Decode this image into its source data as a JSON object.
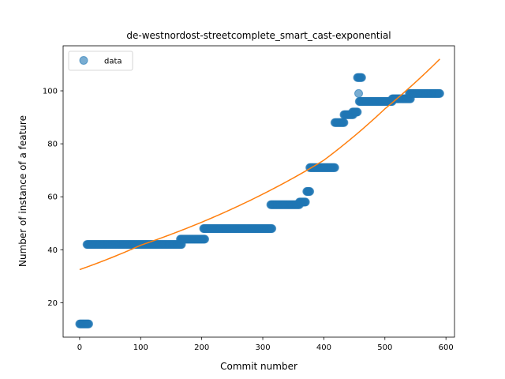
{
  "chart_data": {
    "type": "scatter",
    "title": "de-westnordost-streetcomplete_smart_cast-exponential",
    "xlabel": "Commit number",
    "ylabel": "Number of instance of a feature",
    "xlim": [
      -27,
      614
    ],
    "ylim": [
      7,
      117
    ],
    "xticks": [
      0,
      100,
      200,
      300,
      400,
      500,
      600
    ],
    "yticks": [
      20,
      40,
      60,
      80,
      100
    ],
    "grid": false,
    "legend": {
      "placement": "top-left",
      "entries": [
        "data"
      ]
    },
    "colors": {
      "data": "#1f77b4",
      "fit": "#ff7f0e"
    },
    "data_segments": [
      {
        "x_start": 0,
        "x_end": 15,
        "y": 12
      },
      {
        "x_start": 12,
        "x_end": 167,
        "y": 42
      },
      {
        "x_start": 165,
        "x_end": 205,
        "y": 44
      },
      {
        "x_start": 203,
        "x_end": 315,
        "y": 48
      },
      {
        "x_start": 313,
        "x_end": 360,
        "y": 57
      },
      {
        "x_start": 360,
        "x_end": 370,
        "y": 58
      },
      {
        "x_start": 372,
        "x_end": 377,
        "y": 62
      },
      {
        "x_start": 377,
        "x_end": 418,
        "y": 71
      },
      {
        "x_start": 418,
        "x_end": 433,
        "y": 88
      },
      {
        "x_start": 433,
        "x_end": 448,
        "y": 91
      },
      {
        "x_start": 447,
        "x_end": 455,
        "y": 92
      },
      {
        "x_start": 455,
        "x_end": 462,
        "y": 105
      },
      {
        "x_start": 458,
        "x_end": 512,
        "y": 96
      },
      {
        "x_start": 512,
        "x_end": 542,
        "y": 97
      },
      {
        "x_start": 540,
        "x_end": 590,
        "y": 99
      }
    ],
    "data_points": [
      {
        "x": 457,
        "y": 99
      }
    ],
    "fit": {
      "x": [
        0,
        100,
        200,
        300,
        400,
        500,
        590
      ],
      "y": [
        32.5,
        41.7,
        50.4,
        61.0,
        73.8,
        93.2,
        112.0
      ]
    }
  }
}
